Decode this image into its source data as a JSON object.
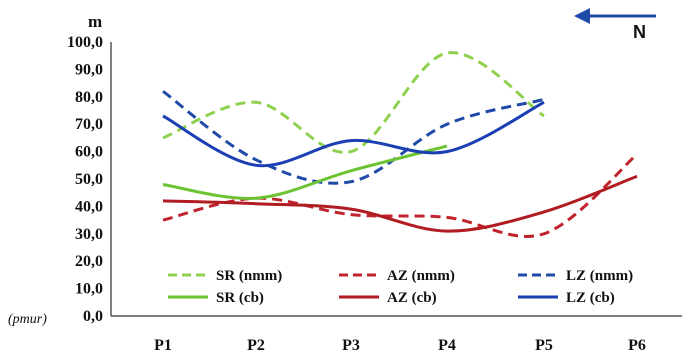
{
  "chart_data": {
    "type": "line",
    "categories": [
      "P1",
      "P2",
      "P3",
      "P4",
      "P5",
      "P6"
    ],
    "ylabel": "m",
    "ylim": [
      0,
      100
    ],
    "y_ticks": [
      "0,0",
      "10,0",
      "20,0",
      "30,0",
      "40,0",
      "50,0",
      "60,0",
      "70,0",
      "80,0",
      "90,0",
      "100,0"
    ],
    "y_zero_note": "(pmur)",
    "compass_label": "N",
    "grid": false,
    "legend_position": "bottom-inside",
    "series": [
      {
        "name": "SR (nmm)",
        "color": "#8fd14f",
        "dash": true,
        "values": [
          65,
          78,
          60,
          96,
          73,
          null
        ]
      },
      {
        "name": "AZ (nmm)",
        "color": "#c0232b",
        "dash": true,
        "values": [
          35,
          43,
          37,
          36,
          30,
          59
        ]
      },
      {
        "name": "LZ (nmm)",
        "color": "#1f4aa8",
        "dash": true,
        "values": [
          82,
          57,
          49,
          70,
          79,
          null
        ]
      },
      {
        "name": "SR (cb)",
        "color": "#6cc332",
        "dash": false,
        "values": [
          48,
          43,
          53,
          62,
          null,
          null
        ]
      },
      {
        "name": "AZ (cb)",
        "color": "#b01c22",
        "dash": false,
        "values": [
          42,
          41,
          39,
          31,
          38,
          51
        ]
      },
      {
        "name": "LZ (cb)",
        "color": "#1b3fb3",
        "dash": false,
        "values": [
          73,
          55,
          64,
          60,
          78,
          null
        ]
      }
    ]
  }
}
